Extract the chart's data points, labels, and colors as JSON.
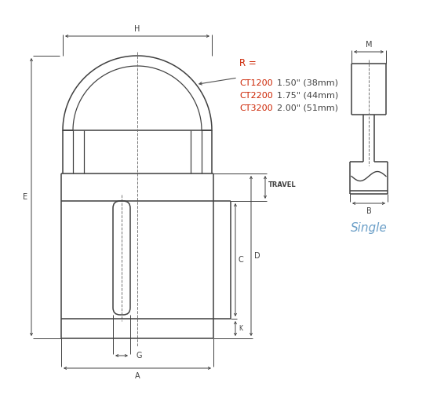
{
  "bg_color": "#ffffff",
  "line_color": "#404040",
  "dim_color": "#404040",
  "text_color_r_label": "#cc2200",
  "text_color_ct": "#cc2200",
  "text_color_vals": "#404040",
  "text_color_single": "#6b9fc8",
  "R_label": "R =",
  "R_lines": [
    {
      "model": "CT1200",
      "value": "1.50\" (38mm)"
    },
    {
      "model": "CT2200",
      "value": "1.75\" (44mm)"
    },
    {
      "model": "CT3200",
      "value": "2.00\" (51mm)"
    }
  ],
  "single_label": "Single",
  "lw_main": 1.1,
  "lw_dim": 0.7,
  "fs_dim": 7.0
}
